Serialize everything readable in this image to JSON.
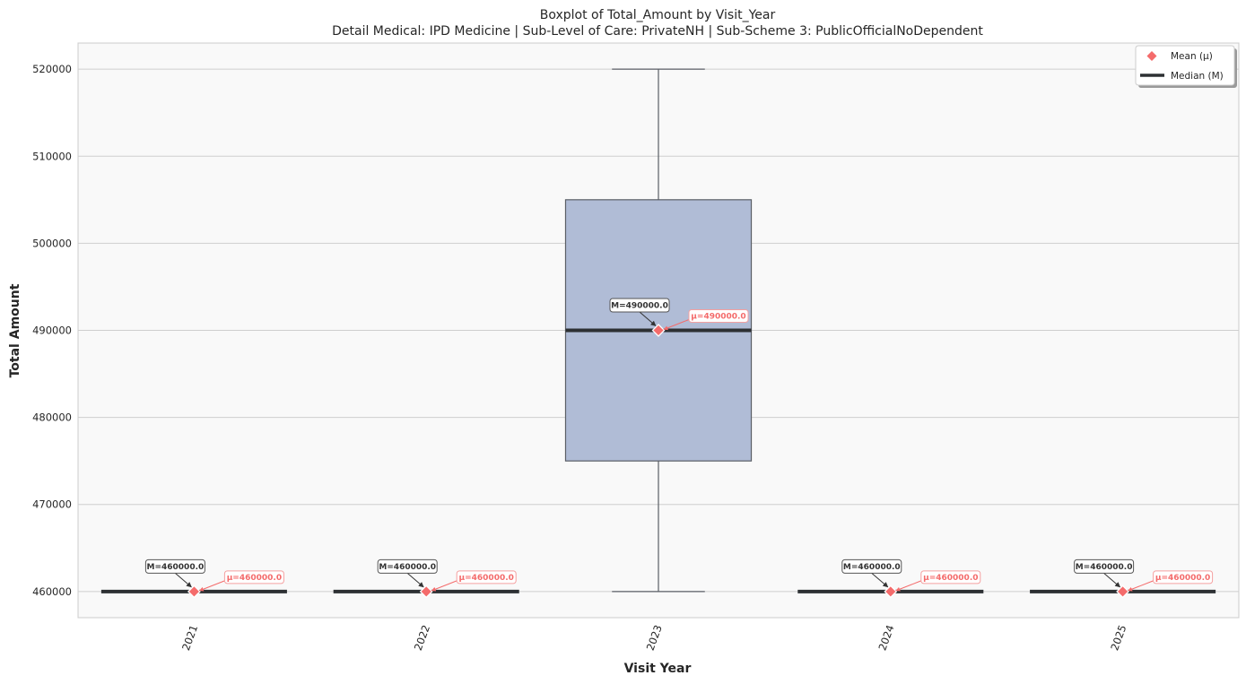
{
  "chart_data": {
    "type": "boxplot",
    "title": "Boxplot of Total_Amount by Visit_Year",
    "subtitle": "Detail Medical: IPD Medicine | Sub-Level of Care: PrivateNH | Sub-Scheme 3: PublicOfficialNoDependent",
    "xlabel": "Visit Year",
    "ylabel": "Total Amount",
    "ylim": [
      457000,
      523000
    ],
    "yticks": [
      460000,
      470000,
      480000,
      490000,
      500000,
      510000,
      520000
    ],
    "ytick_labels": [
      "460000",
      "470000",
      "480000",
      "490000",
      "500000",
      "510000",
      "520000"
    ],
    "grid": true,
    "legend_position": "top-right",
    "categories": [
      "2021",
      "2022",
      "2023",
      "2024",
      "2025"
    ],
    "boxes": [
      {
        "category": "2021",
        "whisker_low": 460000,
        "q1": 460000,
        "median": 460000,
        "q3": 460000,
        "whisker_high": 460000,
        "mean": 460000,
        "median_label": "M=460000.0",
        "mean_label": "μ=460000.0"
      },
      {
        "category": "2022",
        "whisker_low": 460000,
        "q1": 460000,
        "median": 460000,
        "q3": 460000,
        "whisker_high": 460000,
        "mean": 460000,
        "median_label": "M=460000.0",
        "mean_label": "μ=460000.0"
      },
      {
        "category": "2023",
        "whisker_low": 460000,
        "q1": 475000,
        "median": 490000,
        "q3": 505000,
        "whisker_high": 520000,
        "mean": 490000,
        "median_label": "M=490000.0",
        "mean_label": "μ=490000.0"
      },
      {
        "category": "2024",
        "whisker_low": 460000,
        "q1": 460000,
        "median": 460000,
        "q3": 460000,
        "whisker_high": 460000,
        "mean": 460000,
        "median_label": "M=460000.0",
        "mean_label": "μ=460000.0"
      },
      {
        "category": "2025",
        "whisker_low": 460000,
        "q1": 460000,
        "median": 460000,
        "q3": 460000,
        "whisker_high": 460000,
        "mean": 460000,
        "median_label": "M=460000.0",
        "mean_label": "μ=460000.0"
      }
    ],
    "legend": [
      {
        "label": "Mean (μ)",
        "marker": "diamond"
      },
      {
        "label": "Median (M)",
        "marker": "line"
      }
    ],
    "colors": {
      "box_fill": "#b0bcd6",
      "box_edge": "#5a5f66",
      "median": "#2d3033",
      "mean": "#f46b6b",
      "plot_bg": "#f9f9f9",
      "grid": "#cfcfcf"
    }
  }
}
